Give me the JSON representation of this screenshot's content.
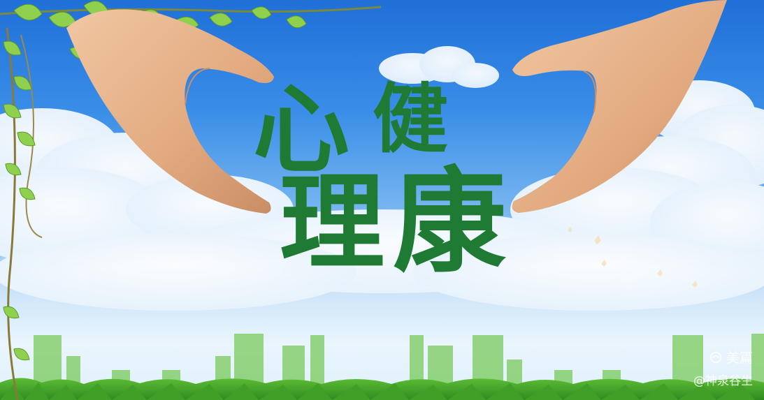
{
  "poster": {
    "chars": [
      "心",
      "健",
      "理",
      "康"
    ],
    "text_color": "#1f7a34"
  },
  "watermark": {
    "brand": "美篇",
    "author": "@神泉谷生",
    "icon": "meipian-logo-icon"
  },
  "colors": {
    "sky_top": "#1f6fd8",
    "sky_bottom": "#eaf5fd",
    "grass": "#3fa02a",
    "skyline": "#7cc96a",
    "skin": "#e7b48c"
  }
}
